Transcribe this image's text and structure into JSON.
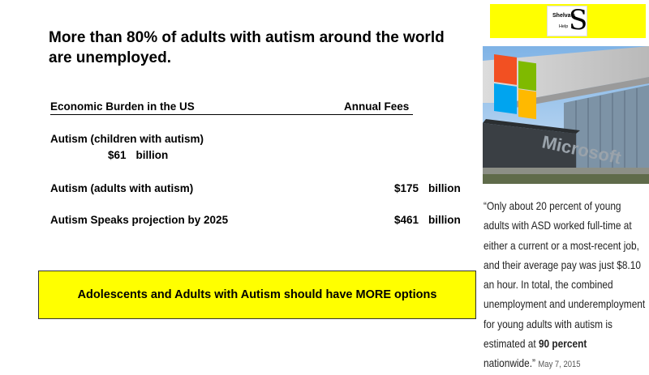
{
  "title": "More than 80% of adults with autism around the world are unemployed.",
  "table": {
    "header_left": "Economic Burden in the US",
    "header_right": "Annual Fees",
    "rows": [
      {
        "label": "Autism (children with autism)",
        "amount": "$61",
        "unit": "billion"
      },
      {
        "label": "Autism (adults with autism)",
        "amount": "$175",
        "unit": "billion"
      },
      {
        "label": "Autism Speaks projection by 2025",
        "amount": "$461",
        "unit": "billion"
      }
    ]
  },
  "callout": "Adolescents and Adults with Autism should have MORE options",
  "logo": {
    "word": "Shelva's",
    "help": "Help",
    "letter": "S"
  },
  "photo": {
    "sign_text": "Microsoft"
  },
  "quote": {
    "text_before": "“Only about 20 percent of young adults with ASD worked full-time at either a current or a most-recent job, and their average pay was just $8.10 an hour. In total, the combined unemployment and underemployment for young adults with autism is estimated at ",
    "highlight": "90 percent",
    "text_after": " nationwide.”",
    "date": "May 7, 2015"
  },
  "colors": {
    "callout": "#ffff00",
    "logo_band": "#ffff00"
  }
}
